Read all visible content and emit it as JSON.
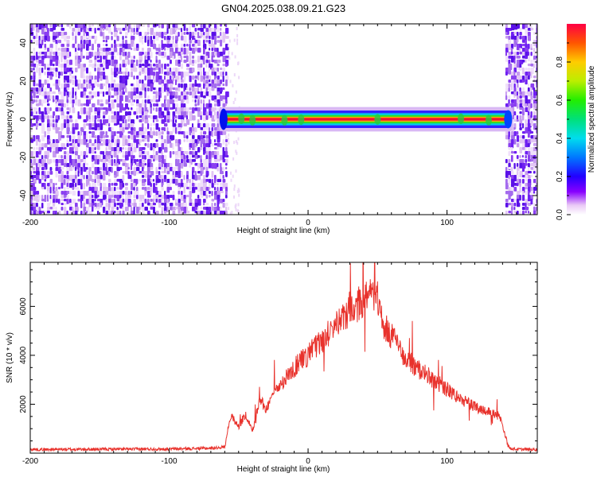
{
  "title": "GN04.2025.038.09.21.G23",
  "chart_data": [
    {
      "type": "heatmap",
      "xlabel": "Height of straight line (km)",
      "ylabel": "Frequency (Hz)",
      "xlim": [
        -200,
        165
      ],
      "ylim": [
        -50,
        50
      ],
      "x_ticks": [
        -200,
        -100,
        0,
        100
      ],
      "y_ticks": [
        -40,
        -20,
        0,
        20,
        40
      ],
      "noise_regions_km": [
        [
          -200,
          -58
        ],
        [
          142,
          165
        ]
      ],
      "signal_band": {
        "x_range_km": [
          -62,
          144
        ],
        "center_frequency_hz": 0,
        "half_width_hz": 2
      },
      "colorbar": {
        "label": "Normalized spectral amplitude",
        "range": [
          0.0,
          1.0
        ],
        "ticks": [
          0.0,
          0.2,
          0.4,
          0.6,
          0.8
        ]
      }
    },
    {
      "type": "line",
      "xlabel": "Height of straight line (km)",
      "ylabel": "SNR (10 * v/v)",
      "xlim": [
        -200,
        165
      ],
      "ylim": [
        0,
        7800
      ],
      "x_ticks": [
        -200,
        -100,
        0,
        100
      ],
      "y_ticks": [
        2000,
        4000,
        6000
      ],
      "line_color": "#e8322c",
      "series": [
        {
          "x": [
            -200,
            -150,
            -100,
            -70,
            -60,
            -58,
            -55,
            -50,
            -45,
            -40,
            -35,
            -30,
            -25,
            -20,
            -15,
            -10,
            0,
            10,
            20,
            30,
            40,
            45,
            50,
            55,
            60,
            70,
            80,
            90,
            100,
            110,
            120,
            130,
            138,
            142,
            145,
            150,
            165
          ],
          "y": [
            150,
            160,
            170,
            200,
            250,
            900,
            1500,
            1100,
            1600,
            900,
            2200,
            1800,
            2400,
            2800,
            3200,
            3500,
            4000,
            4600,
            5200,
            5900,
            6200,
            6400,
            6300,
            5200,
            4800,
            3900,
            3400,
            3000,
            2600,
            2200,
            1900,
            1700,
            1500,
            700,
            200,
            160,
            150
          ]
        }
      ]
    }
  ]
}
